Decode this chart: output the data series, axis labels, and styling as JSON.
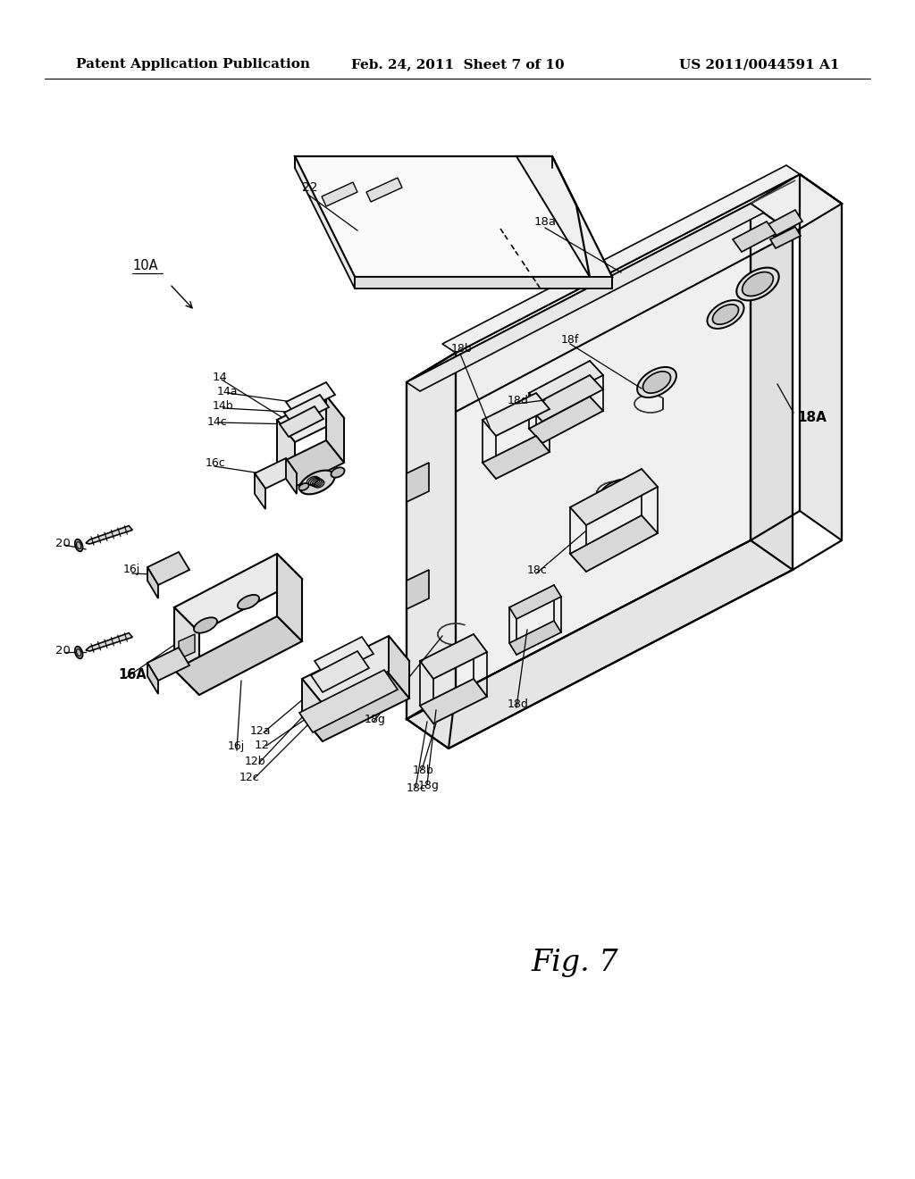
{
  "header_left": "Patent Application Publication",
  "header_mid": "Feb. 24, 2011  Sheet 7 of 10",
  "header_right": "US 2011/0044591 A1",
  "fig_label": "Fig. 7",
  "bg": "#ffffff",
  "lc": "#000000",
  "header_fontsize": 11,
  "fig_fontsize": 24
}
